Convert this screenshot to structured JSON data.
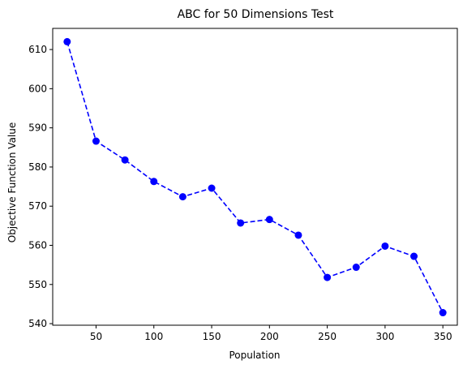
{
  "chart_data": {
    "type": "line",
    "title": "ABC for 50 Dimensions Test",
    "xlabel": "Population",
    "ylabel": "Objective Function Value",
    "xlim": [
      12.5,
      362.5
    ],
    "ylim": [
      539.6,
      615.4
    ],
    "xticks": [
      50,
      100,
      150,
      200,
      250,
      300,
      350
    ],
    "yticks": [
      540,
      550,
      560,
      570,
      580,
      590,
      600,
      610
    ],
    "grid": false,
    "legend": null,
    "series": [
      {
        "color": "#0000ff",
        "line_style": "dashed",
        "marker": "circle",
        "x": [
          25,
          50,
          75,
          100,
          125,
          150,
          175,
          200,
          225,
          250,
          275,
          300,
          325,
          350
        ],
        "y": [
          612.0,
          586.6,
          581.8,
          576.3,
          572.4,
          574.6,
          565.7,
          566.6,
          562.6,
          551.8,
          554.4,
          559.8,
          557.2,
          542.8
        ]
      }
    ]
  }
}
